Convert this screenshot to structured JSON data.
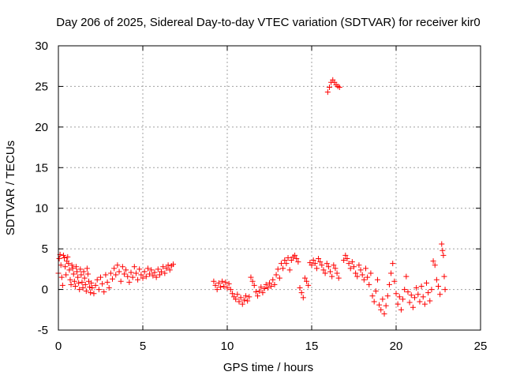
{
  "chart_data": {
    "type": "scatter",
    "title": "Day 206 of 2025, Sidereal Day-to-day VTEC variation (SDTVAR) for receiver kir0",
    "xlabel": "GPS time / hours",
    "ylabel": "SDTVAR / TECUs",
    "xlim": [
      0,
      25
    ],
    "ylim": [
      -5,
      30
    ],
    "x_ticks": [
      "0",
      "5",
      "10",
      "15",
      "20",
      "25"
    ],
    "x_tick_values": [
      0,
      5,
      10,
      15,
      20,
      25
    ],
    "y_ticks": [
      "-5",
      "0",
      "5",
      "10",
      "15",
      "20",
      "25",
      "30"
    ],
    "y_tick_values": [
      -5,
      0,
      5,
      10,
      15,
      20,
      25,
      30
    ],
    "grid": true,
    "marker": "+",
    "colors": {
      "series": "#ff0000",
      "grid": "#a0a0a0",
      "frame": "#000000"
    },
    "series": [
      {
        "name": "SDTVAR",
        "points": [
          [
            0.0,
            2.0
          ],
          [
            0.05,
            3.8
          ],
          [
            0.1,
            4.3
          ],
          [
            0.15,
            3.0
          ],
          [
            0.2,
            1.5
          ],
          [
            0.25,
            0.5
          ],
          [
            0.3,
            4.2
          ],
          [
            0.35,
            3.9
          ],
          [
            0.4,
            2.8
          ],
          [
            0.45,
            1.8
          ],
          [
            0.5,
            3.5
          ],
          [
            0.55,
            4.0
          ],
          [
            0.6,
            3.2
          ],
          [
            0.65,
            2.4
          ],
          [
            0.7,
            1.2
          ],
          [
            0.75,
            0.6
          ],
          [
            0.8,
            3.0
          ],
          [
            0.85,
            2.6
          ],
          [
            0.9,
            1.9
          ],
          [
            0.95,
            1.0
          ],
          [
            1.0,
            0.4
          ],
          [
            1.05,
            2.8
          ],
          [
            1.1,
            2.2
          ],
          [
            1.15,
            1.5
          ],
          [
            1.2,
            0.8
          ],
          [
            1.25,
            0.0
          ],
          [
            1.3,
            2.5
          ],
          [
            1.35,
            1.8
          ],
          [
            1.4,
            0.9
          ],
          [
            1.45,
            0.2
          ],
          [
            1.5,
            2.2
          ],
          [
            1.55,
            1.4
          ],
          [
            1.6,
            0.6
          ],
          [
            1.65,
            -0.2
          ],
          [
            1.7,
            2.6
          ],
          [
            1.75,
            1.9
          ],
          [
            1.8,
            1.0
          ],
          [
            1.85,
            0.3
          ],
          [
            1.9,
            -0.4
          ],
          [
            1.95,
            0.8
          ],
          [
            2.0,
            0.2
          ],
          [
            2.1,
            -0.5
          ],
          [
            2.2,
            0.5
          ],
          [
            2.3,
            1.2
          ],
          [
            2.4,
            0.0
          ],
          [
            2.5,
            1.5
          ],
          [
            2.6,
            0.7
          ],
          [
            2.7,
            -0.3
          ],
          [
            2.8,
            1.8
          ],
          [
            2.9,
            0.9
          ],
          [
            3.0,
            0.2
          ],
          [
            3.1,
            2.0
          ],
          [
            3.2,
            1.3
          ],
          [
            3.3,
            2.6
          ],
          [
            3.4,
            1.8
          ],
          [
            3.5,
            3.0
          ],
          [
            3.6,
            2.2
          ],
          [
            3.7,
            1.0
          ],
          [
            3.8,
            2.8
          ],
          [
            3.9,
            1.9
          ],
          [
            4.0,
            2.4
          ],
          [
            4.1,
            1.6
          ],
          [
            4.2,
            0.9
          ],
          [
            4.3,
            2.1
          ],
          [
            4.4,
            1.5
          ],
          [
            4.5,
            2.8
          ],
          [
            4.6,
            2.0
          ],
          [
            4.7,
            1.2
          ],
          [
            4.8,
            2.5
          ],
          [
            4.9,
            1.8
          ],
          [
            5.0,
            1.4
          ],
          [
            5.1,
            2.2
          ],
          [
            5.2,
            1.6
          ],
          [
            5.3,
            2.6
          ],
          [
            5.4,
            1.9
          ],
          [
            5.5,
            2.4
          ],
          [
            5.6,
            1.7
          ],
          [
            5.7,
            2.1
          ],
          [
            5.8,
            1.5
          ],
          [
            5.9,
            2.5
          ],
          [
            6.0,
            1.8
          ],
          [
            6.1,
            2.2
          ],
          [
            6.2,
            2.8
          ],
          [
            6.3,
            2.0
          ],
          [
            6.4,
            2.6
          ],
          [
            6.5,
            3.0
          ],
          [
            6.6,
            2.4
          ],
          [
            6.7,
            2.9
          ],
          [
            6.8,
            3.1
          ],
          [
            9.2,
            1.0
          ],
          [
            9.3,
            0.5
          ],
          [
            9.4,
            0.0
          ],
          [
            9.5,
            0.8
          ],
          [
            9.6,
            0.3
          ],
          [
            9.7,
            1.0
          ],
          [
            9.8,
            0.4
          ],
          [
            9.9,
            0.9
          ],
          [
            10.0,
            0.2
          ],
          [
            10.1,
            0.7
          ],
          [
            10.2,
            0.0
          ],
          [
            10.3,
            -0.5
          ],
          [
            10.4,
            -0.9
          ],
          [
            10.5,
            -1.2
          ],
          [
            10.6,
            -0.6
          ],
          [
            10.7,
            -1.5
          ],
          [
            10.8,
            -1.0
          ],
          [
            10.9,
            -1.8
          ],
          [
            11.0,
            -1.3
          ],
          [
            11.1,
            -0.8
          ],
          [
            11.2,
            -1.4
          ],
          [
            11.3,
            -0.9
          ],
          [
            11.4,
            1.5
          ],
          [
            11.5,
            1.0
          ],
          [
            11.6,
            0.5
          ],
          [
            11.7,
            -0.3
          ],
          [
            11.8,
            -0.8
          ],
          [
            11.9,
            -0.2
          ],
          [
            12.0,
            0.3
          ],
          [
            12.1,
            -0.4
          ],
          [
            12.2,
            0.1
          ],
          [
            12.3,
            0.6
          ],
          [
            12.4,
            0.2
          ],
          [
            12.5,
            0.8
          ],
          [
            12.6,
            0.4
          ],
          [
            12.7,
            1.2
          ],
          [
            12.8,
            0.6
          ],
          [
            12.9,
            1.8
          ],
          [
            13.0,
            2.5
          ],
          [
            13.1,
            1.4
          ],
          [
            13.2,
            3.2
          ],
          [
            13.3,
            2.6
          ],
          [
            13.4,
            3.6
          ],
          [
            13.5,
            3.2
          ],
          [
            13.6,
            3.9
          ],
          [
            13.7,
            2.4
          ],
          [
            13.8,
            3.6
          ],
          [
            13.9,
            4.0
          ],
          [
            14.0,
            4.2
          ],
          [
            14.1,
            3.8
          ],
          [
            14.2,
            3.4
          ],
          [
            14.3,
            0.2
          ],
          [
            14.4,
            -0.4
          ],
          [
            14.5,
            -1.0
          ],
          [
            14.6,
            1.4
          ],
          [
            14.7,
            1.0
          ],
          [
            14.8,
            0.5
          ],
          [
            14.9,
            3.3
          ],
          [
            15.0,
            3.0
          ],
          [
            15.1,
            3.6
          ],
          [
            15.2,
            3.2
          ],
          [
            15.3,
            2.6
          ],
          [
            15.4,
            3.8
          ],
          [
            15.5,
            3.4
          ],
          [
            15.6,
            3.0
          ],
          [
            15.7,
            2.4
          ],
          [
            15.8,
            2.0
          ],
          [
            15.9,
            3.2
          ],
          [
            16.0,
            2.8
          ],
          [
            16.1,
            2.2
          ],
          [
            16.2,
            1.6
          ],
          [
            16.3,
            3.0
          ],
          [
            16.4,
            2.6
          ],
          [
            16.5,
            2.0
          ],
          [
            16.6,
            1.4
          ],
          [
            15.95,
            24.3
          ],
          [
            16.05,
            24.9
          ],
          [
            16.15,
            25.5
          ],
          [
            16.25,
            25.8
          ],
          [
            16.35,
            25.5
          ],
          [
            16.45,
            25.2
          ],
          [
            16.55,
            25.0
          ],
          [
            16.65,
            24.9
          ],
          [
            16.9,
            3.6
          ],
          [
            17.0,
            4.2
          ],
          [
            17.1,
            3.8
          ],
          [
            17.2,
            3.2
          ],
          [
            17.3,
            2.6
          ],
          [
            17.4,
            3.4
          ],
          [
            17.5,
            2.8
          ],
          [
            17.6,
            2.0
          ],
          [
            17.7,
            1.6
          ],
          [
            17.8,
            3.0
          ],
          [
            17.9,
            2.4
          ],
          [
            18.0,
            1.8
          ],
          [
            18.1,
            1.2
          ],
          [
            18.2,
            2.6
          ],
          [
            18.3,
            1.5
          ],
          [
            18.4,
            0.6
          ],
          [
            18.5,
            2.0
          ],
          [
            18.6,
            -0.8
          ],
          [
            18.7,
            -1.5
          ],
          [
            18.8,
            -0.2
          ],
          [
            18.9,
            1.2
          ],
          [
            19.0,
            -1.9
          ],
          [
            19.1,
            -2.5
          ],
          [
            19.2,
            -1.2
          ],
          [
            19.3,
            -3.0
          ],
          [
            19.4,
            -2.0
          ],
          [
            19.5,
            -0.8
          ],
          [
            19.6,
            0.6
          ],
          [
            19.7,
            2.0
          ],
          [
            19.8,
            3.2
          ],
          [
            19.9,
            1.0
          ],
          [
            20.0,
            -0.5
          ],
          [
            20.1,
            -1.8
          ],
          [
            20.2,
            -0.9
          ],
          [
            20.3,
            -2.5
          ],
          [
            20.4,
            -1.2
          ],
          [
            20.5,
            0.0
          ],
          [
            20.6,
            1.6
          ],
          [
            20.7,
            -0.3
          ],
          [
            20.8,
            -1.6
          ],
          [
            20.9,
            -0.7
          ],
          [
            21.0,
            -2.2
          ],
          [
            21.1,
            -1.0
          ],
          [
            21.2,
            0.2
          ],
          [
            21.3,
            -0.6
          ],
          [
            21.4,
            -1.5
          ],
          [
            21.5,
            0.4
          ],
          [
            21.6,
            -0.9
          ],
          [
            21.7,
            -1.8
          ],
          [
            21.8,
            0.8
          ],
          [
            21.9,
            -0.4
          ],
          [
            22.0,
            -1.4
          ],
          [
            22.1,
            0.0
          ],
          [
            22.2,
            3.5
          ],
          [
            22.3,
            3.0
          ],
          [
            22.4,
            1.2
          ],
          [
            22.5,
            0.4
          ],
          [
            22.6,
            -0.6
          ],
          [
            22.7,
            5.6
          ],
          [
            22.75,
            4.8
          ],
          [
            22.8,
            4.2
          ],
          [
            22.85,
            1.6
          ],
          [
            22.9,
            0.0
          ]
        ]
      }
    ]
  }
}
